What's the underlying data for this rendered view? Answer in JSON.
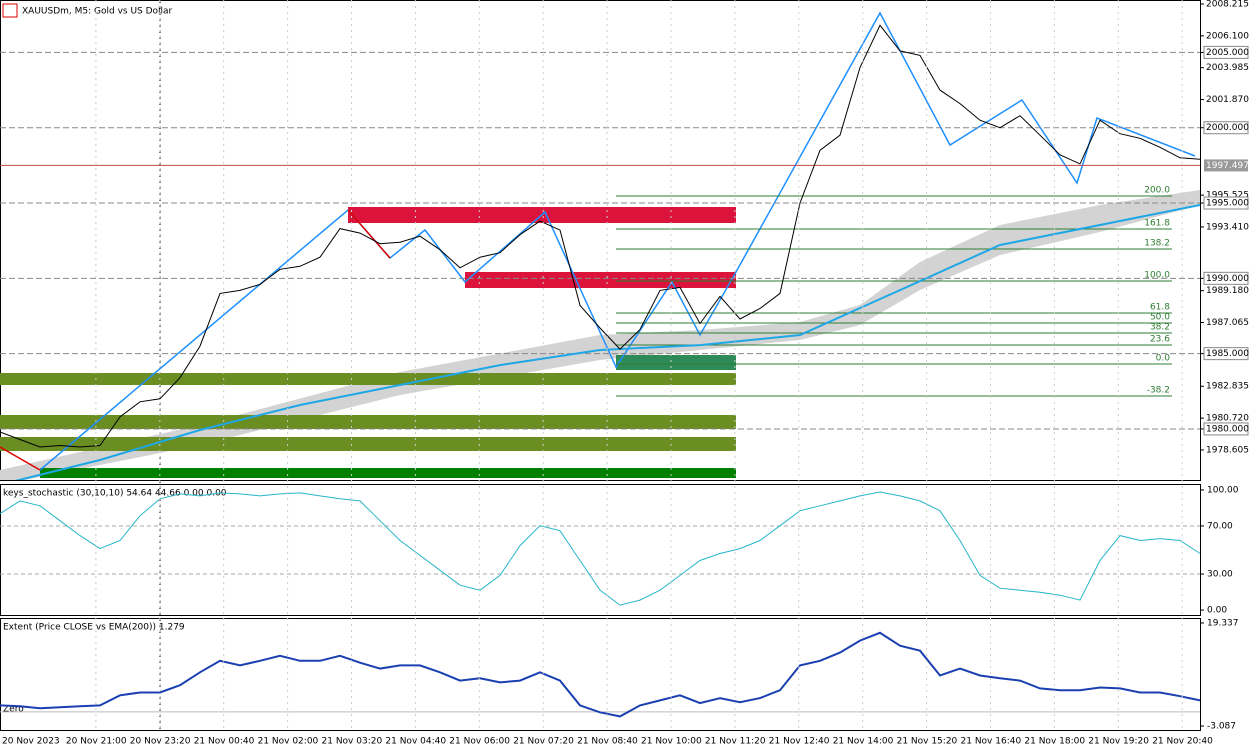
{
  "main": {
    "title": "XAUUSDm, M5:  Gold vs US Dollar",
    "ylim": [
      1976.61,
      2008.48
    ],
    "price_ticks": [
      {
        "value": 2008.215,
        "label": "2008.215",
        "boxed": false
      },
      {
        "value": 2006.1,
        "label": "2006.100",
        "boxed": false
      },
      {
        "value": 2005,
        "label": "2005.000",
        "boxed": true
      },
      {
        "value": 2003.985,
        "label": "2003.985",
        "boxed": false
      },
      {
        "value": 2001.87,
        "label": "2001.870",
        "boxed": false
      },
      {
        "value": 2000,
        "label": "2000.000",
        "boxed": true
      },
      {
        "value": 1995.525,
        "label": "1995.525",
        "boxed": false
      },
      {
        "value": 1995,
        "label": "1995.000",
        "boxed": true
      },
      {
        "value": 1993.41,
        "label": "1993.410",
        "boxed": false
      },
      {
        "value": 1990,
        "label": "1990.000",
        "boxed": true
      },
      {
        "value": 1989.18,
        "label": "1989.180",
        "boxed": false
      },
      {
        "value": 1987.065,
        "label": "1987.065",
        "boxed": false
      },
      {
        "value": 1985,
        "label": "1985.000",
        "boxed": true
      },
      {
        "value": 1982.835,
        "label": "1982.835",
        "boxed": false
      },
      {
        "value": 1980.72,
        "label": "1980.720",
        "boxed": false
      },
      {
        "value": 1980,
        "label": "1980.000",
        "boxed": true
      },
      {
        "value": 1978.605,
        "label": "1978.605",
        "boxed": false
      }
    ],
    "current_price": {
      "value": 1997.497,
      "label": "1997.497"
    },
    "close": [
      1979.8,
      1979.3,
      1978.8,
      1978.9,
      1978.8,
      1978.9,
      1980.8,
      1981.8,
      1982.0,
      1983.4,
      1985.5,
      1989.0,
      1989.2,
      1989.6,
      1990.6,
      1990.8,
      1991.4,
      1993.3,
      1993.0,
      1992.3,
      1992.4,
      1992.8,
      1991.9,
      1990.7,
      1991.4,
      1991.7,
      1992.9,
      1993.8,
      1993.2,
      1988.2,
      1986.7,
      1985.3,
      1986.6,
      1989.2,
      1989.4,
      1987.0,
      1988.8,
      1987.3,
      1988.0,
      1989.0,
      1995.0,
      1998.5,
      1999.5,
      2004.0,
      2006.8,
      2005.1,
      2004.8,
      2002.5,
      2001.6,
      2000.5,
      2000.0,
      2000.8,
      1999.5,
      1998.2,
      1997.6,
      2000.5,
      1999.6,
      1999.3,
      1998.7,
      1998.0,
      1997.9
    ],
    "ema": [
      1976.3,
      1977.94,
      1979.93,
      1981.59,
      1982.92,
      1984.24,
      1985.24,
      1985.57,
      1986.24,
      1989.22,
      1992.21,
      1993.54,
      1994.87
    ],
    "fib_labels": [
      "200.0",
      "161.8",
      "138.2",
      "100.0",
      "61.8",
      "50.0",
      "38.2",
      "23.6",
      "0.0",
      "-38.2"
    ]
  },
  "stochastic": {
    "title": "keys_stochastic (30,10,10) 54.64 44.66 0.00 0.00",
    "ylim": [
      -4.1,
      104.1
    ],
    "yticks": [
      {
        "value": 100,
        "label": "100.00"
      },
      {
        "value": 70,
        "label": "70.00"
      },
      {
        "value": 30,
        "label": "30.00"
      },
      {
        "value": 0,
        "label": "0.00"
      }
    ],
    "main_line": [
      80.2,
      90.9,
      86.8,
      74.4,
      62.0,
      51.2,
      57.9,
      78.5,
      92.6,
      96.7,
      95.0,
      97.5,
      96.7,
      95.0,
      96.7,
      97.5,
      95.0,
      92.6,
      90.9,
      74.4,
      57.9,
      45.5,
      33.1,
      20.7,
      16.5,
      28.9,
      53.7,
      70.2,
      66.1,
      41.3,
      16.5,
      4.1,
      8.3,
      16.5,
      28.9,
      41.3,
      47.1,
      51.2,
      57.9,
      70.2,
      82.6,
      86.8,
      90.9,
      95.0,
      98.3,
      95.0,
      90.9,
      82.6,
      57.9,
      28.9,
      18.2,
      16.5,
      14.9,
      12.4,
      8.3,
      41.3,
      62.0,
      57.9,
      59.5,
      57.9,
      47.1
    ]
  },
  "extent": {
    "title": "Extent (Price CLOSE vs EMA(200)) 1.279",
    "zero_label": "Zero",
    "ylim": [
      -3.95,
      20.2
    ],
    "yticks": [
      {
        "value": 19.337,
        "label": "19.337"
      },
      {
        "value": -3.087,
        "label": "-3.087"
      }
    ],
    "values": [
      1.4,
      1.2,
      0.8,
      1.0,
      1.2,
      1.4,
      3.6,
      4.2,
      4.2,
      5.8,
      8.6,
      11.1,
      10.1,
      11.1,
      12.2,
      11.1,
      11.1,
      12.2,
      10.7,
      9.4,
      10.1,
      10.1,
      8.6,
      6.8,
      7.3,
      6.4,
      6.8,
      8.6,
      6.8,
      1.4,
      -0.1,
      -1.0,
      1.4,
      2.5,
      3.6,
      1.9,
      3.0,
      2.1,
      3.0,
      4.7,
      10.1,
      11.1,
      12.9,
      15.5,
      17.2,
      14.4,
      13.3,
      7.9,
      9.4,
      7.9,
      7.3,
      6.8,
      5.1,
      4.7,
      4.7,
      5.3,
      5.1,
      4.2,
      4.2,
      3.4,
      2.5
    ]
  },
  "time_labels": [
    "20 Nov 2023",
    "20 Nov 21:00",
    "20 Nov 23:20",
    "21 Nov 00:40",
    "21 Nov 02:00",
    "21 Nov 03:20",
    "21 Nov 04:40",
    "21 Nov 06:00",
    "21 Nov 07:20",
    "21 Nov 08:40",
    "21 Nov 10:00",
    "21 Nov 11:20",
    "21 Nov 12:40",
    "21 Nov 14:00",
    "21 Nov 15:20",
    "21 Nov 16:40",
    "21 Nov 18:00",
    "21 Nov 19:20",
    "21 Nov 20:40"
  ]
}
